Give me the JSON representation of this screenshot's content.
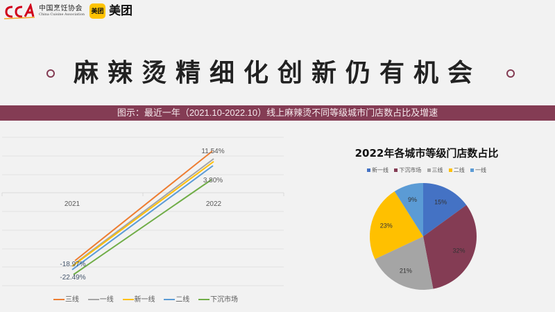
{
  "header": {
    "cca_logo_mark": "CCA",
    "cca_name_cn": "中国烹饪协会",
    "cca_name_en": "China Cuisine Association",
    "meituan_badge": "美团",
    "meituan_text": "美团"
  },
  "title": "麻辣烫精细化创新仍有机会",
  "banner": "图示：最近一年（2021.10-2022.10）线上麻辣烫不同等级城市门店数占比及增速",
  "colors": {
    "accent": "#843c54",
    "orange": "#ed7d31",
    "gray": "#a5a5a5",
    "yellow": "#ffc000",
    "blue": "#5b9bd5",
    "green": "#70ad47",
    "dark_blue": "#4472c4"
  },
  "line_chart": {
    "category_labels": [
      "2021",
      "2022"
    ],
    "annotations": {
      "top_end": "11.54%",
      "bottom_end": "3.80%",
      "top_start": "-18.97%",
      "bottom_start": "-22.49%"
    },
    "legend": [
      "三线",
      "一线",
      "新一线",
      "二线",
      "下沉市场"
    ]
  },
  "pie_chart": {
    "title": "2022年各城市等级门店数占比",
    "legend": [
      "新一线",
      "下沉市场",
      "三线",
      "二线",
      "一线"
    ],
    "labels": [
      "15%",
      "32%",
      "21%",
      "23%",
      "9%"
    ]
  },
  "chart_data": [
    {
      "type": "line",
      "title": "",
      "categories": [
        "2021",
        "2022"
      ],
      "series": [
        {
          "name": "三线",
          "values": [
            -18.97,
            11.54
          ],
          "color": "#ed7d31"
        },
        {
          "name": "一线",
          "values": [
            -19.6,
            9.6
          ],
          "color": "#a5a5a5"
        },
        {
          "name": "新一线",
          "values": [
            -20.3,
            8.9
          ],
          "color": "#ffc000"
        },
        {
          "name": "二线",
          "values": [
            -21.0,
            7.9
          ],
          "color": "#5b9bd5"
        },
        {
          "name": "下沉市场",
          "values": [
            -22.49,
            3.8
          ],
          "color": "#70ad47"
        }
      ],
      "data_labels": [
        "11.54%",
        "3.80%",
        "-18.97%",
        "-22.49%"
      ],
      "xlabel": "",
      "ylabel": "",
      "grid": true,
      "legend_position": "bottom"
    },
    {
      "type": "pie",
      "title": "2022年各城市等级门店数占比",
      "categories": [
        "新一线",
        "下沉市场",
        "三线",
        "二线",
        "一线"
      ],
      "values": [
        15,
        32,
        21,
        23,
        9
      ],
      "colors": [
        "#4472c4",
        "#843c54",
        "#a5a5a5",
        "#ffc000",
        "#5b9bd5"
      ],
      "legend_position": "top"
    }
  ]
}
